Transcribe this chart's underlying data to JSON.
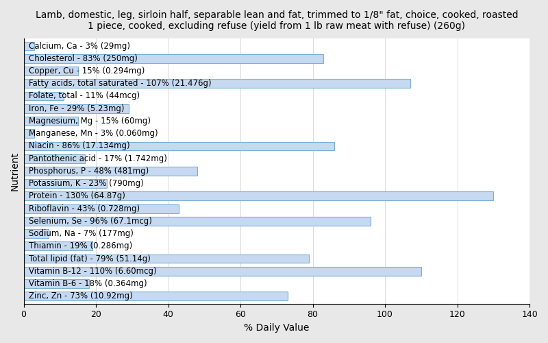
{
  "title": "Lamb, domestic, leg, sirloin half, separable lean and fat, trimmed to 1/8\" fat, choice, cooked, roasted\n1 piece, cooked, excluding refuse (yield from 1 lb raw meat with refuse) (260g)",
  "xlabel": "% Daily Value",
  "ylabel": "Nutrient",
  "nutrients": [
    "Calcium, Ca - 3% (29mg)",
    "Cholesterol - 83% (250mg)",
    "Copper, Cu - 15% (0.294mg)",
    "Fatty acids, total saturated - 107% (21.476g)",
    "Folate, total - 11% (44mcg)",
    "Iron, Fe - 29% (5.23mg)",
    "Magnesium, Mg - 15% (60mg)",
    "Manganese, Mn - 3% (0.060mg)",
    "Niacin - 86% (17.134mg)",
    "Pantothenic acid - 17% (1.742mg)",
    "Phosphorus, P - 48% (481mg)",
    "Potassium, K - 23% (790mg)",
    "Protein - 130% (64.87g)",
    "Riboflavin - 43% (0.728mg)",
    "Selenium, Se - 96% (67.1mcg)",
    "Sodium, Na - 7% (177mg)",
    "Thiamin - 19% (0.286mg)",
    "Total lipid (fat) - 79% (51.14g)",
    "Vitamin B-12 - 110% (6.60mcg)",
    "Vitamin B-6 - 18% (0.364mg)",
    "Zinc, Zn - 73% (10.92mg)"
  ],
  "values": [
    3,
    83,
    15,
    107,
    11,
    29,
    15,
    3,
    86,
    17,
    48,
    23,
    130,
    43,
    96,
    7,
    19,
    79,
    110,
    18,
    73
  ],
  "bar_color": "#c6d9f1",
  "bar_edge_color": "#7bafd4",
  "background_color": "#e8e8e8",
  "plot_background_color": "#ffffff",
  "title_fontsize": 10,
  "axis_label_fontsize": 10,
  "tick_fontsize": 9,
  "bar_label_fontsize": 8.5,
  "xlim": [
    0,
    140
  ],
  "xticks": [
    0,
    20,
    40,
    60,
    80,
    100,
    120,
    140
  ]
}
